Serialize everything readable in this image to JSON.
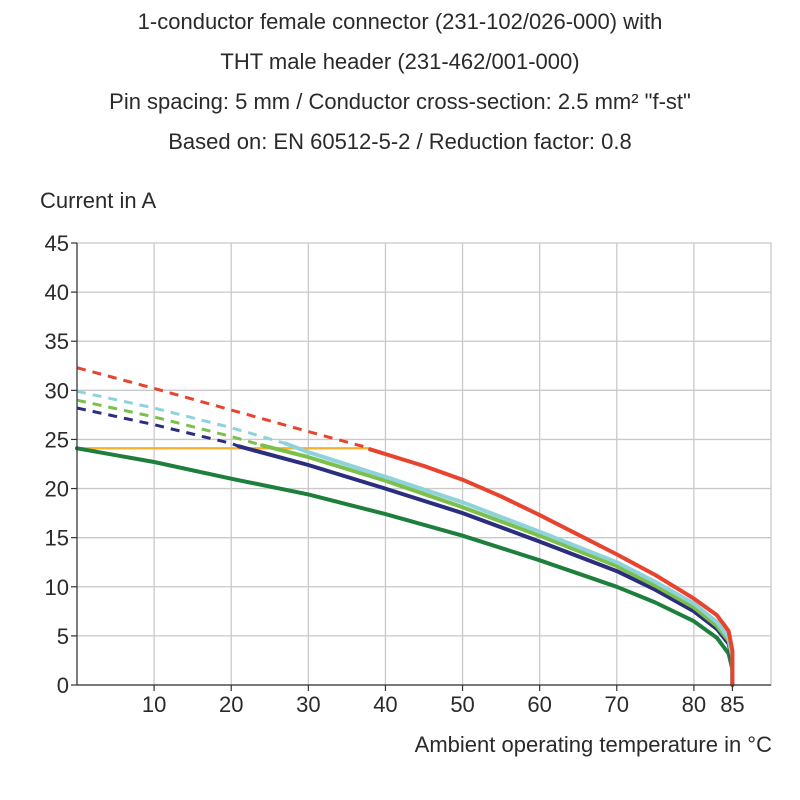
{
  "title": {
    "line1": "1-conductor female connector (231-102/026-000) with",
    "line2": "THT male header (231-462/001-000)",
    "line3": "Pin spacing: 5 mm / Conductor cross-section: 2.5 mm² \"f-st\"",
    "line4": "Based on: EN 60512-5-2 / Reduction factor: 0.8"
  },
  "chart_data": {
    "type": "line",
    "ylabel": "Current in A",
    "xlabel": "Ambient operating temperature in °C",
    "xlim": [
      0,
      90
    ],
    "ylim": [
      0,
      45
    ],
    "x_ticks": [
      10,
      20,
      30,
      40,
      50,
      60,
      70,
      80,
      85
    ],
    "y_ticks": [
      0,
      5,
      10,
      15,
      20,
      25,
      30,
      35,
      40,
      45
    ],
    "grid": true,
    "series": [
      {
        "color": "#e8432f",
        "dashed": [
          [
            0,
            32.3
          ],
          [
            10,
            30.2
          ],
          [
            20,
            28.0
          ],
          [
            30,
            25.8
          ],
          [
            38,
            24.1
          ]
        ],
        "solid": [
          [
            38,
            24.0
          ],
          [
            45,
            22.3
          ],
          [
            50,
            20.9
          ],
          [
            55,
            19.2
          ],
          [
            60,
            17.3
          ],
          [
            65,
            15.3
          ],
          [
            70,
            13.3
          ],
          [
            75,
            11.2
          ],
          [
            80,
            8.8
          ],
          [
            83,
            7.1
          ],
          [
            84.5,
            5.5
          ],
          [
            85,
            3.5
          ],
          [
            85,
            0
          ]
        ]
      },
      {
        "color": "#8ed3dc",
        "dashed": [
          [
            0,
            29.9
          ],
          [
            10,
            28.2
          ],
          [
            20,
            26.2
          ],
          [
            27,
            24.6
          ]
        ],
        "solid": [
          [
            27,
            24.6
          ],
          [
            30,
            23.7
          ],
          [
            40,
            21.2
          ],
          [
            50,
            18.6
          ],
          [
            60,
            15.6
          ],
          [
            70,
            12.5
          ],
          [
            75,
            10.5
          ],
          [
            80,
            8.3
          ],
          [
            83,
            6.4
          ],
          [
            84.5,
            4.8
          ],
          [
            85,
            3.0
          ],
          [
            85,
            0
          ]
        ]
      },
      {
        "color": "#7cc04b",
        "dashed": [
          [
            0,
            29.0
          ],
          [
            10,
            27.3
          ],
          [
            20,
            25.3
          ],
          [
            24,
            24.4
          ]
        ],
        "solid": [
          [
            24,
            24.4
          ],
          [
            30,
            23.2
          ],
          [
            40,
            20.8
          ],
          [
            50,
            18.1
          ],
          [
            60,
            15.2
          ],
          [
            70,
            12.1
          ],
          [
            75,
            10.1
          ],
          [
            80,
            7.9
          ],
          [
            83,
            6.0
          ],
          [
            84.5,
            4.5
          ],
          [
            85,
            2.8
          ],
          [
            85,
            0
          ]
        ]
      },
      {
        "color": "#2b2e7e",
        "dashed": [
          [
            0,
            28.2
          ],
          [
            10,
            26.5
          ],
          [
            20,
            24.6
          ],
          [
            21,
            24.3
          ]
        ],
        "solid": [
          [
            21,
            24.3
          ],
          [
            30,
            22.4
          ],
          [
            40,
            20.0
          ],
          [
            50,
            17.5
          ],
          [
            60,
            14.6
          ],
          [
            70,
            11.6
          ],
          [
            75,
            9.7
          ],
          [
            80,
            7.5
          ],
          [
            83,
            5.7
          ],
          [
            84.5,
            4.2
          ],
          [
            85,
            2.6
          ],
          [
            85,
            0
          ]
        ]
      },
      {
        "color": "#f5b22f",
        "dashed": [],
        "solid": [
          [
            0,
            24.1
          ],
          [
            38,
            24.1
          ]
        ]
      },
      {
        "color": "#1e7f3c",
        "dashed": [],
        "solid": [
          [
            0,
            24.1
          ],
          [
            10,
            22.7
          ],
          [
            20,
            21.0
          ],
          [
            30,
            19.4
          ],
          [
            40,
            17.4
          ],
          [
            50,
            15.2
          ],
          [
            60,
            12.7
          ],
          [
            70,
            10.0
          ],
          [
            75,
            8.4
          ],
          [
            80,
            6.5
          ],
          [
            83,
            4.8
          ],
          [
            84.5,
            3.2
          ],
          [
            85,
            1.6
          ],
          [
            85,
            0
          ]
        ]
      }
    ]
  }
}
